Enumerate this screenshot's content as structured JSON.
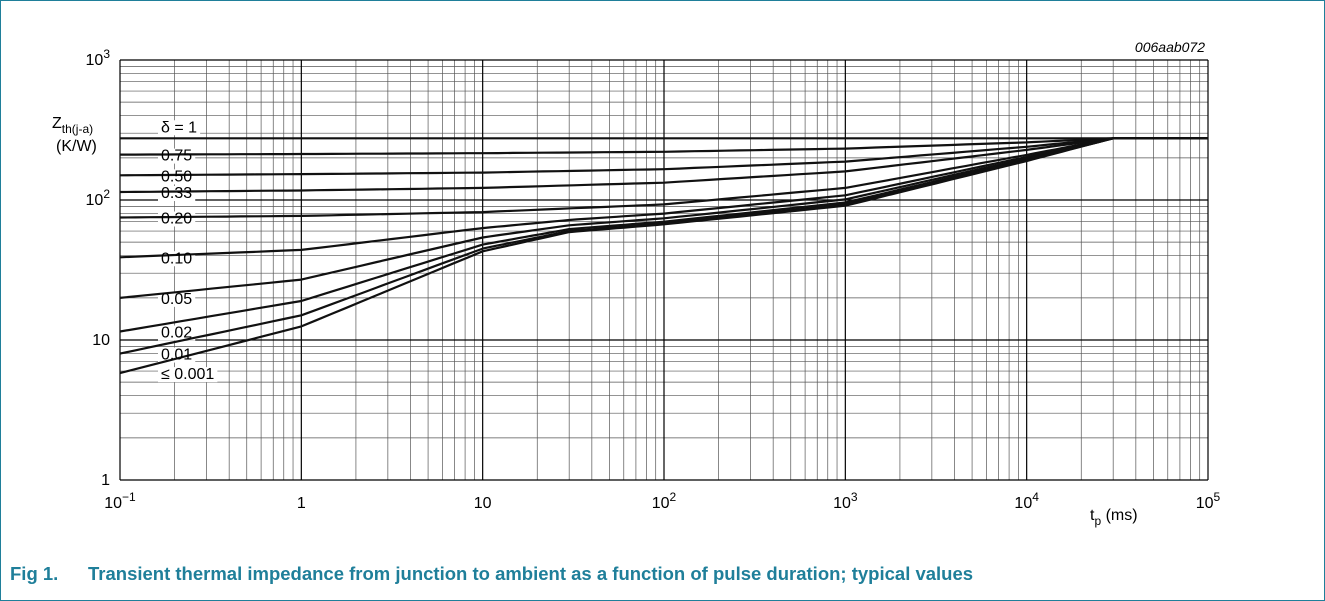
{
  "chart_data": {
    "type": "line",
    "x_scale": "log",
    "y_scale": "log",
    "xlim": [
      0.1,
      100000
    ],
    "ylim": [
      1,
      1000
    ],
    "x_ticks": [
      {
        "value": 0.1,
        "base": "10",
        "exp": "−1"
      },
      {
        "value": 1,
        "base": "1",
        "exp": ""
      },
      {
        "value": 10,
        "base": "10",
        "exp": ""
      },
      {
        "value": 100,
        "base": "10",
        "exp": "2"
      },
      {
        "value": 1000,
        "base": "10",
        "exp": "3"
      },
      {
        "value": 10000,
        "base": "10",
        "exp": "4"
      },
      {
        "value": 100000,
        "base": "10",
        "exp": "5"
      }
    ],
    "y_ticks": [
      {
        "value": 1,
        "base": "1",
        "exp": ""
      },
      {
        "value": 10,
        "base": "10",
        "exp": ""
      },
      {
        "value": 100,
        "base": "10",
        "exp": "2"
      },
      {
        "value": 1000,
        "base": "10",
        "exp": "3"
      }
    ],
    "ylabel": {
      "main": "Z",
      "sub": "th(j-a)",
      "unit": "(K/W)"
    },
    "xlabel": {
      "main": "t",
      "sub": "p",
      "unit": " (ms)"
    },
    "reference": "006aab072",
    "grid": true,
    "series": [
      {
        "name": "δ = 1",
        "points": [
          [
            0.1,
            276
          ],
          [
            100000,
            276
          ]
        ]
      },
      {
        "name": "0.75",
        "points": [
          [
            0.1,
            211
          ],
          [
            1,
            213
          ],
          [
            10,
            216
          ],
          [
            100,
            221
          ],
          [
            1000,
            233
          ],
          [
            10000,
            258
          ],
          [
            30000,
            276
          ],
          [
            100000,
            276
          ]
        ]
      },
      {
        "name": "0.50",
        "points": [
          [
            0.1,
            150
          ],
          [
            1,
            153
          ],
          [
            10,
            157
          ],
          [
            100,
            166
          ],
          [
            1000,
            188
          ],
          [
            10000,
            240
          ],
          [
            30000,
            276
          ],
          [
            100000,
            276
          ]
        ]
      },
      {
        "name": "0.33",
        "points": [
          [
            0.1,
            114
          ],
          [
            1,
            117
          ],
          [
            10,
            122
          ],
          [
            100,
            133
          ],
          [
            1000,
            160
          ],
          [
            10000,
            228
          ],
          [
            30000,
            276
          ],
          [
            100000,
            276
          ]
        ]
      },
      {
        "name": "0.20",
        "points": [
          [
            0.1,
            75
          ],
          [
            1,
            77
          ],
          [
            10,
            82
          ],
          [
            100,
            93
          ],
          [
            1000,
            122
          ],
          [
            10000,
            210
          ],
          [
            30000,
            276
          ],
          [
            100000,
            276
          ]
        ]
      },
      {
        "name": "0.10",
        "points": [
          [
            0.1,
            39
          ],
          [
            1,
            44
          ],
          [
            10,
            63
          ],
          [
            30,
            72
          ],
          [
            100,
            80
          ],
          [
            1000,
            108
          ],
          [
            10000,
            203
          ],
          [
            30000,
            276
          ],
          [
            100000,
            276
          ]
        ]
      },
      {
        "name": "0.05",
        "points": [
          [
            0.1,
            20
          ],
          [
            1,
            27
          ],
          [
            10,
            54
          ],
          [
            30,
            66
          ],
          [
            100,
            74
          ],
          [
            1000,
            101
          ],
          [
            10000,
            198
          ],
          [
            30000,
            276
          ],
          [
            100000,
            276
          ]
        ]
      },
      {
        "name": "0.02",
        "points": [
          [
            0.1,
            11.5
          ],
          [
            1,
            19
          ],
          [
            10,
            48
          ],
          [
            30,
            62
          ],
          [
            100,
            70
          ],
          [
            1000,
            96
          ],
          [
            10000,
            194
          ],
          [
            30000,
            276
          ],
          [
            100000,
            276
          ]
        ]
      },
      {
        "name": "0.01",
        "points": [
          [
            0.1,
            8
          ],
          [
            1,
            15
          ],
          [
            10,
            45
          ],
          [
            30,
            60
          ],
          [
            100,
            68
          ],
          [
            1000,
            93
          ],
          [
            10000,
            192
          ],
          [
            30000,
            276
          ],
          [
            100000,
            276
          ]
        ]
      },
      {
        "name": "≤ 0.001",
        "points": [
          [
            0.1,
            5.8
          ],
          [
            1,
            12.5
          ],
          [
            10,
            43
          ],
          [
            30,
            59
          ],
          [
            100,
            67
          ],
          [
            1000,
            91
          ],
          [
            10000,
            190
          ],
          [
            30000,
            276
          ],
          [
            100000,
            276
          ]
        ]
      }
    ]
  },
  "caption": {
    "number": "Fig 1.",
    "text": "Transient thermal impedance from junction to ambient as a function of pulse duration; typical values"
  }
}
